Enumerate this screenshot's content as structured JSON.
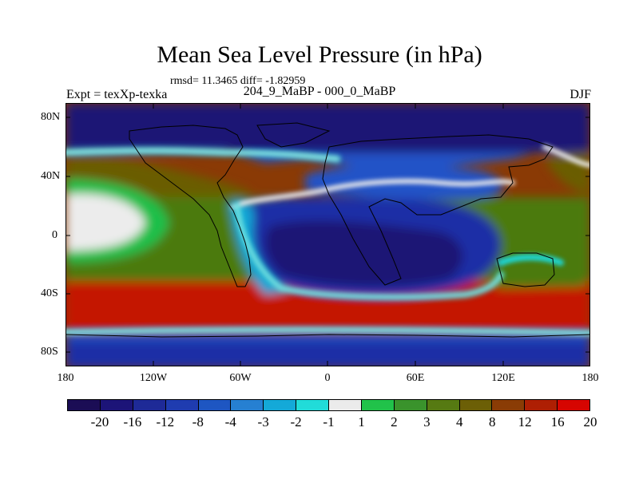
{
  "title": "Mean Sea Level Pressure (in hPa)",
  "subtitle": "rmsd= 11.3465 diff= -1.82959",
  "left_label": "Expt = texXp-texka",
  "center_label": "204_9_MaBP - 000_0_MaBP",
  "right_label": "DJF",
  "map": {
    "y_tick_labels": [
      "80N",
      "40N",
      "0",
      "40S",
      "80S"
    ],
    "x_tick_labels": [
      "180",
      "120W",
      "60W",
      "0",
      "60E",
      "120E",
      "180"
    ],
    "field_colors": {
      "very_low": "#1c1474",
      "low": "#1f2fa6",
      "mid_low": "#2252c7",
      "neg_mid": "#2e7bd6",
      "neg_small": "#13a6d6",
      "near_zero_neg": "#1ad8d8",
      "near_zero": "#ececec",
      "pos_small": "#1fbf4a",
      "pos_mid": "#3e8f2a",
      "pos_4": "#4c7a10",
      "pos_8": "#6a5d06",
      "pos_12": "#8a3a05",
      "pos_16": "#b51d04",
      "pos_20": "#dd0b02"
    }
  },
  "colorbar": {
    "colors": [
      "#1b0d55",
      "#1c1478",
      "#1e2a97",
      "#1f3cb0",
      "#1e56c2",
      "#2680d2",
      "#14a9d8",
      "#21dcd9",
      "#ebebeb",
      "#21c24a",
      "#3a932c",
      "#567a12",
      "#6c5f06",
      "#8a3c05",
      "#ae1f03",
      "#d60501"
    ],
    "labels": [
      "-20",
      "-16",
      "-12",
      "-8",
      "-4",
      "-3",
      "-2",
      "-1",
      "1",
      "2",
      "3",
      "4",
      "8",
      "12",
      "16",
      "20"
    ]
  }
}
